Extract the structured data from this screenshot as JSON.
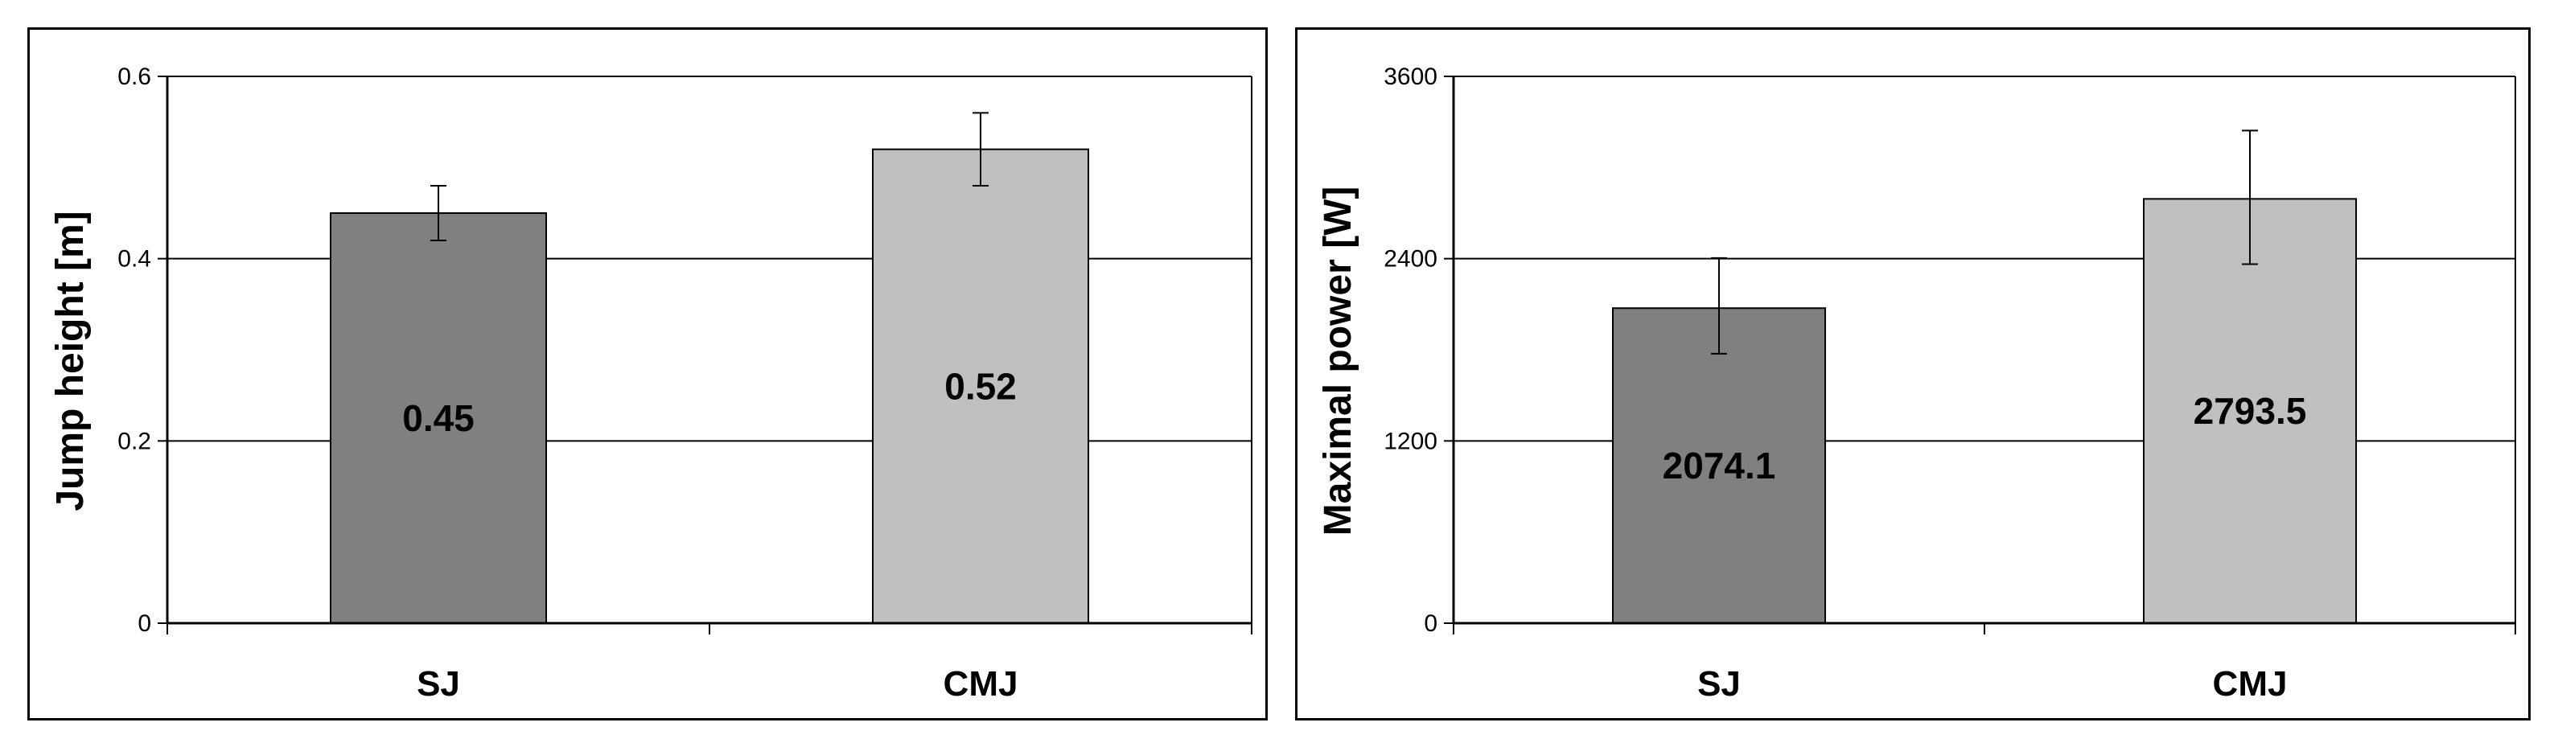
{
  "chart_data": [
    {
      "type": "bar",
      "categories": [
        "SJ",
        "CMJ"
      ],
      "values": [
        0.45,
        0.52
      ],
      "value_labels": [
        "0.45",
        "0.52"
      ],
      "error_plus": [
        0.03,
        0.04
      ],
      "error_minus": [
        0.03,
        0.04
      ],
      "bar_colors": [
        "#808080",
        "#c0c0c0"
      ],
      "title": "",
      "xlabel": "",
      "ylabel": "Jump height [m]",
      "ylim": [
        0,
        0.6
      ],
      "yticks": [
        "0",
        "0.2",
        "0.4",
        "0.6"
      ],
      "grid": true
    },
    {
      "type": "bar",
      "categories": [
        "SJ",
        "CMJ"
      ],
      "values": [
        2074.1,
        2793.5
      ],
      "value_labels": [
        "2074.1",
        "2793.5"
      ],
      "error_plus": [
        330,
        450
      ],
      "error_minus": [
        300,
        430
      ],
      "bar_colors": [
        "#808080",
        "#c0c0c0"
      ],
      "title": "",
      "xlabel": "",
      "ylabel": "Maximal power [W]",
      "ylim": [
        0,
        3600
      ],
      "yticks": [
        "0",
        "1200",
        "2400",
        "3600"
      ],
      "grid": true
    }
  ]
}
